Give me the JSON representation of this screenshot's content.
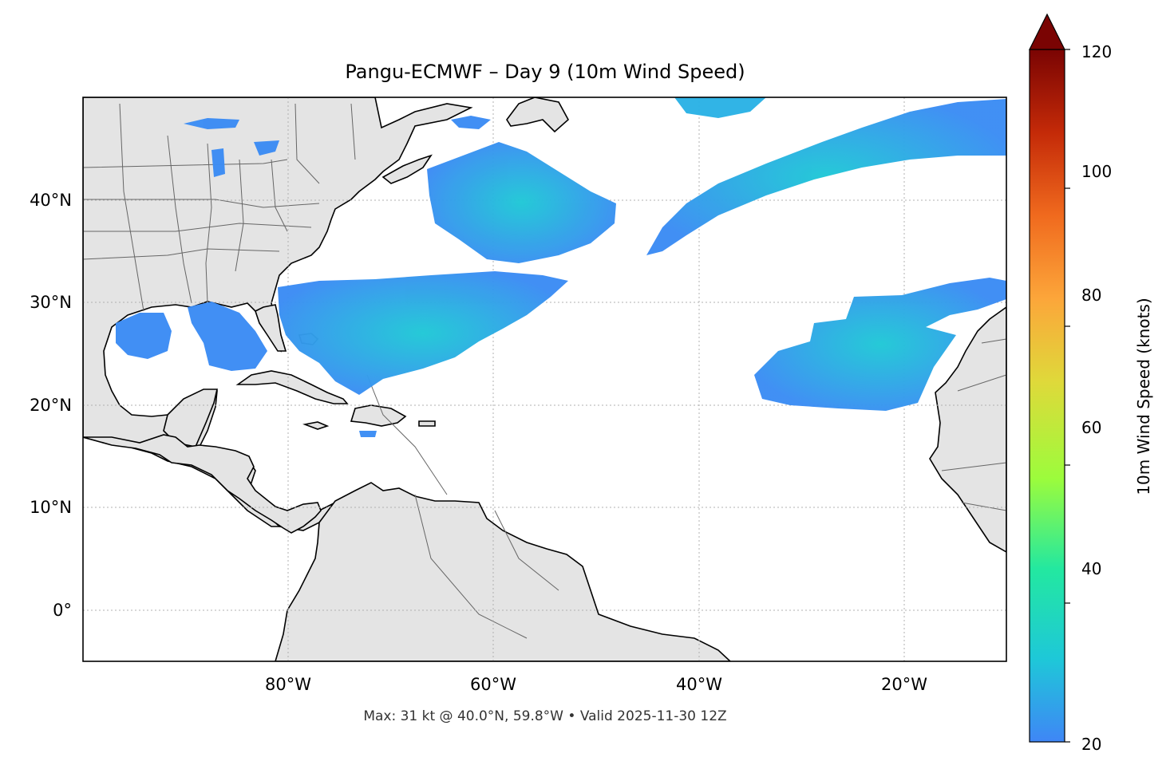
{
  "title": "Pangu-ECMWF – Day 9 (10m Wind Speed)",
  "footer": "Max: 31 kt @ 40.0°N, 59.8°W • Valid 2025-11-30 12Z",
  "map": {
    "lon_range": [
      -100,
      -10
    ],
    "lat_range": [
      -5,
      50
    ],
    "lat_ticks": [
      {
        "value": 40,
        "label": "40°N"
      },
      {
        "value": 30,
        "label": "30°N"
      },
      {
        "value": 20,
        "label": "20°N"
      },
      {
        "value": 10,
        "label": "10°N"
      },
      {
        "value": 0,
        "label": "0°"
      }
    ],
    "lon_ticks": [
      {
        "value": -80,
        "label": "80°W"
      },
      {
        "value": -60,
        "label": "60°W"
      },
      {
        "value": -40,
        "label": "40°W"
      },
      {
        "value": -20,
        "label": "20°W"
      }
    ],
    "land_color": "#e4e4e4",
    "coast_color": "#000000",
    "border_color": "#666666",
    "grid_color": "#b0b0b0"
  },
  "wind_max": {
    "value_kt": 31,
    "lat": 40.0,
    "lon": -59.8
  },
  "colorbar": {
    "label": "10m Wind Speed (knots)",
    "min": 20,
    "max": 120,
    "extend": "max",
    "ticks": [
      "20",
      "40",
      "60",
      "80",
      "100",
      "120"
    ],
    "tick_values": [
      20,
      40,
      60,
      80,
      100,
      120
    ],
    "colors": [
      "#3f86f6",
      "#1ec8d8",
      "#23e8a0",
      "#9cfc3c",
      "#dfd93a",
      "#fca63a",
      "#f06a1e",
      "#c42a08",
      "#7a0403"
    ]
  }
}
